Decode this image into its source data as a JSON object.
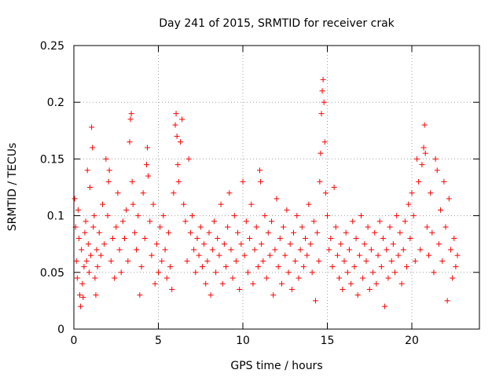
{
  "chart_data": {
    "type": "scatter",
    "title": "Day 241 of 2015, SRMTID for receiver crak",
    "xlabel": "GPS time / hours",
    "ylabel": "SRMTID / TECUs",
    "xlim": [
      0,
      24
    ],
    "ylim": [
      0,
      0.25
    ],
    "x_ticks": [
      0,
      5,
      10,
      15,
      20
    ],
    "x_tick_labels": [
      "0",
      "5",
      "10",
      "15",
      "20"
    ],
    "y_ticks": [
      0,
      0.05,
      0.1,
      0.15,
      0.2,
      0.25
    ],
    "y_tick_labels": [
      "0",
      "0.05",
      "0.1",
      "0.15",
      "0.2",
      "0.25"
    ],
    "grid": true,
    "marker": "+",
    "color": "#ff0000",
    "series": [
      {
        "name": "SRMTID",
        "points": [
          [
            0.05,
            0.115
          ],
          [
            0.1,
            0.09
          ],
          [
            0.15,
            0.06
          ],
          [
            0.2,
            0.045
          ],
          [
            0.25,
            0.105
          ],
          [
            0.3,
            0.08
          ],
          [
            0.35,
            0.03
          ],
          [
            0.4,
            0.02
          ],
          [
            0.45,
            0.07
          ],
          [
            0.5,
            0.04
          ],
          [
            0.55,
            0.028
          ],
          [
            0.6,
            0.055
          ],
          [
            0.65,
            0.085
          ],
          [
            0.7,
            0.095
          ],
          [
            0.75,
            0.06
          ],
          [
            0.8,
            0.14
          ],
          [
            0.85,
            0.075
          ],
          [
            0.9,
            0.05
          ],
          [
            0.95,
            0.125
          ],
          [
            1.0,
            0.065
          ],
          [
            1.05,
            0.178
          ],
          [
            1.1,
            0.16
          ],
          [
            1.15,
            0.09
          ],
          [
            1.2,
            0.1
          ],
          [
            1.25,
            0.045
          ],
          [
            1.3,
            0.03
          ],
          [
            1.35,
            0.07
          ],
          [
            1.4,
            0.055
          ],
          [
            1.5,
            0.085
          ],
          [
            1.6,
            0.065
          ],
          [
            1.7,
            0.11
          ],
          [
            1.8,
            0.075
          ],
          [
            1.9,
            0.15
          ],
          [
            2.0,
            0.1
          ],
          [
            2.05,
            0.13
          ],
          [
            2.1,
            0.14
          ],
          [
            2.2,
            0.06
          ],
          [
            2.3,
            0.08
          ],
          [
            2.4,
            0.045
          ],
          [
            2.5,
            0.09
          ],
          [
            2.6,
            0.12
          ],
          [
            2.7,
            0.07
          ],
          [
            2.8,
            0.05
          ],
          [
            2.9,
            0.095
          ],
          [
            3.0,
            0.08
          ],
          [
            3.1,
            0.105
          ],
          [
            3.2,
            0.06
          ],
          [
            3.3,
            0.165
          ],
          [
            3.35,
            0.185
          ],
          [
            3.4,
            0.19
          ],
          [
            3.45,
            0.13
          ],
          [
            3.5,
            0.11
          ],
          [
            3.6,
            0.085
          ],
          [
            3.7,
            0.07
          ],
          [
            3.8,
            0.1
          ],
          [
            3.9,
            0.03
          ],
          [
            4.0,
            0.055
          ],
          [
            4.1,
            0.12
          ],
          [
            4.2,
            0.08
          ],
          [
            4.3,
            0.145
          ],
          [
            4.35,
            0.16
          ],
          [
            4.4,
            0.135
          ],
          [
            4.5,
            0.095
          ],
          [
            4.6,
            0.065
          ],
          [
            4.7,
            0.11
          ],
          [
            4.8,
            0.04
          ],
          [
            4.9,
            0.075
          ],
          [
            5.0,
            0.05
          ],
          [
            5.1,
            0.09
          ],
          [
            5.2,
            0.06
          ],
          [
            5.3,
            0.1
          ],
          [
            5.4,
            0.07
          ],
          [
            5.5,
            0.045
          ],
          [
            5.6,
            0.085
          ],
          [
            5.7,
            0.055
          ],
          [
            5.8,
            0.035
          ],
          [
            5.9,
            0.12
          ],
          [
            6.0,
            0.18
          ],
          [
            6.05,
            0.19
          ],
          [
            6.1,
            0.17
          ],
          [
            6.15,
            0.145
          ],
          [
            6.2,
            0.13
          ],
          [
            6.3,
            0.165
          ],
          [
            6.4,
            0.185
          ],
          [
            6.5,
            0.11
          ],
          [
            6.6,
            0.095
          ],
          [
            6.7,
            0.06
          ],
          [
            6.8,
            0.15
          ],
          [
            6.9,
            0.085
          ],
          [
            7.0,
            0.1
          ],
          [
            7.1,
            0.07
          ],
          [
            7.2,
            0.05
          ],
          [
            7.3,
            0.08
          ],
          [
            7.4,
            0.065
          ],
          [
            7.5,
            0.09
          ],
          [
            7.6,
            0.055
          ],
          [
            7.7,
            0.075
          ],
          [
            7.8,
            0.04
          ],
          [
            7.9,
            0.06
          ],
          [
            8.0,
            0.085
          ],
          [
            8.1,
            0.03
          ],
          [
            8.2,
            0.07
          ],
          [
            8.3,
            0.095
          ],
          [
            8.4,
            0.05
          ],
          [
            8.5,
            0.08
          ],
          [
            8.6,
            0.065
          ],
          [
            8.7,
            0.11
          ],
          [
            8.8,
            0.04
          ],
          [
            8.9,
            0.075
          ],
          [
            9.0,
            0.055
          ],
          [
            9.1,
            0.09
          ],
          [
            9.2,
            0.12
          ],
          [
            9.3,
            0.07
          ],
          [
            9.4,
            0.045
          ],
          [
            9.5,
            0.1
          ],
          [
            9.6,
            0.06
          ],
          [
            9.7,
            0.085
          ],
          [
            9.8,
            0.035
          ],
          [
            9.9,
            0.075
          ],
          [
            10.0,
            0.13
          ],
          [
            10.1,
            0.065
          ],
          [
            10.2,
            0.095
          ],
          [
            10.3,
            0.05
          ],
          [
            10.4,
            0.08
          ],
          [
            10.5,
            0.11
          ],
          [
            10.6,
            0.04
          ],
          [
            10.7,
            0.07
          ],
          [
            10.8,
            0.09
          ],
          [
            10.9,
            0.055
          ],
          [
            11.0,
            0.14
          ],
          [
            11.05,
            0.13
          ],
          [
            11.1,
            0.075
          ],
          [
            11.2,
            0.06
          ],
          [
            11.3,
            0.1
          ],
          [
            11.4,
            0.045
          ],
          [
            11.5,
            0.085
          ],
          [
            11.6,
            0.065
          ],
          [
            11.7,
            0.095
          ],
          [
            11.8,
            0.03
          ],
          [
            11.9,
            0.07
          ],
          [
            12.0,
            0.115
          ],
          [
            12.1,
            0.055
          ],
          [
            12.2,
            0.08
          ],
          [
            12.3,
            0.04
          ],
          [
            12.4,
            0.09
          ],
          [
            12.5,
            0.065
          ],
          [
            12.6,
            0.105
          ],
          [
            12.7,
            0.05
          ],
          [
            12.8,
            0.075
          ],
          [
            12.9,
            0.035
          ],
          [
            13.0,
            0.085
          ],
          [
            13.1,
            0.06
          ],
          [
            13.2,
            0.1
          ],
          [
            13.3,
            0.045
          ],
          [
            13.4,
            0.07
          ],
          [
            13.5,
            0.09
          ],
          [
            13.6,
            0.055
          ],
          [
            13.7,
            0.08
          ],
          [
            13.8,
            0.065
          ],
          [
            13.9,
            0.11
          ],
          [
            14.0,
            0.075
          ],
          [
            14.1,
            0.05
          ],
          [
            14.2,
            0.095
          ],
          [
            14.3,
            0.025
          ],
          [
            14.4,
            0.085
          ],
          [
            14.5,
            0.06
          ],
          [
            14.55,
            0.13
          ],
          [
            14.6,
            0.155
          ],
          [
            14.65,
            0.19
          ],
          [
            14.7,
            0.21
          ],
          [
            14.75,
            0.22
          ],
          [
            14.8,
            0.2
          ],
          [
            14.85,
            0.165
          ],
          [
            14.9,
            0.12
          ],
          [
            15.0,
            0.1
          ],
          [
            15.1,
            0.07
          ],
          [
            15.2,
            0.08
          ],
          [
            15.3,
            0.055
          ],
          [
            15.4,
            0.125
          ],
          [
            15.5,
            0.09
          ],
          [
            15.6,
            0.065
          ],
          [
            15.7,
            0.045
          ],
          [
            15.8,
            0.075
          ],
          [
            15.9,
            0.035
          ],
          [
            16.0,
            0.06
          ],
          [
            16.1,
            0.085
          ],
          [
            16.2,
            0.05
          ],
          [
            16.3,
            0.07
          ],
          [
            16.4,
            0.04
          ],
          [
            16.5,
            0.095
          ],
          [
            16.6,
            0.055
          ],
          [
            16.7,
            0.08
          ],
          [
            16.8,
            0.03
          ],
          [
            16.9,
            0.065
          ],
          [
            17.0,
            0.1
          ],
          [
            17.1,
            0.045
          ],
          [
            17.2,
            0.075
          ],
          [
            17.3,
            0.06
          ],
          [
            17.4,
            0.09
          ],
          [
            17.5,
            0.035
          ],
          [
            17.6,
            0.07
          ],
          [
            17.7,
            0.05
          ],
          [
            17.8,
            0.085
          ],
          [
            17.9,
            0.04
          ],
          [
            18.0,
            0.065
          ],
          [
            18.1,
            0.095
          ],
          [
            18.2,
            0.055
          ],
          [
            18.3,
            0.08
          ],
          [
            18.4,
            0.02
          ],
          [
            18.5,
            0.07
          ],
          [
            18.6,
            0.045
          ],
          [
            18.7,
            0.09
          ],
          [
            18.8,
            0.06
          ],
          [
            18.9,
            0.075
          ],
          [
            19.0,
            0.05
          ],
          [
            19.1,
            0.1
          ],
          [
            19.2,
            0.065
          ],
          [
            19.3,
            0.085
          ],
          [
            19.4,
            0.04
          ],
          [
            19.5,
            0.07
          ],
          [
            19.6,
            0.095
          ],
          [
            19.7,
            0.055
          ],
          [
            19.8,
            0.11
          ],
          [
            19.9,
            0.08
          ],
          [
            20.0,
            0.12
          ],
          [
            20.1,
            0.1
          ],
          [
            20.2,
            0.06
          ],
          [
            20.3,
            0.15
          ],
          [
            20.4,
            0.13
          ],
          [
            20.5,
            0.07
          ],
          [
            20.6,
            0.145
          ],
          [
            20.7,
            0.16
          ],
          [
            20.75,
            0.18
          ],
          [
            20.8,
            0.155
          ],
          [
            20.9,
            0.09
          ],
          [
            21.0,
            0.065
          ],
          [
            21.1,
            0.12
          ],
          [
            21.2,
            0.085
          ],
          [
            21.3,
            0.05
          ],
          [
            21.4,
            0.15
          ],
          [
            21.5,
            0.14
          ],
          [
            21.6,
            0.075
          ],
          [
            21.7,
            0.105
          ],
          [
            21.8,
            0.06
          ],
          [
            21.9,
            0.13
          ],
          [
            22.0,
            0.09
          ],
          [
            22.1,
            0.025
          ],
          [
            22.2,
            0.115
          ],
          [
            22.3,
            0.07
          ],
          [
            22.4,
            0.045
          ],
          [
            22.5,
            0.08
          ],
          [
            22.6,
            0.055
          ],
          [
            22.7,
            0.065
          ]
        ]
      }
    ]
  }
}
